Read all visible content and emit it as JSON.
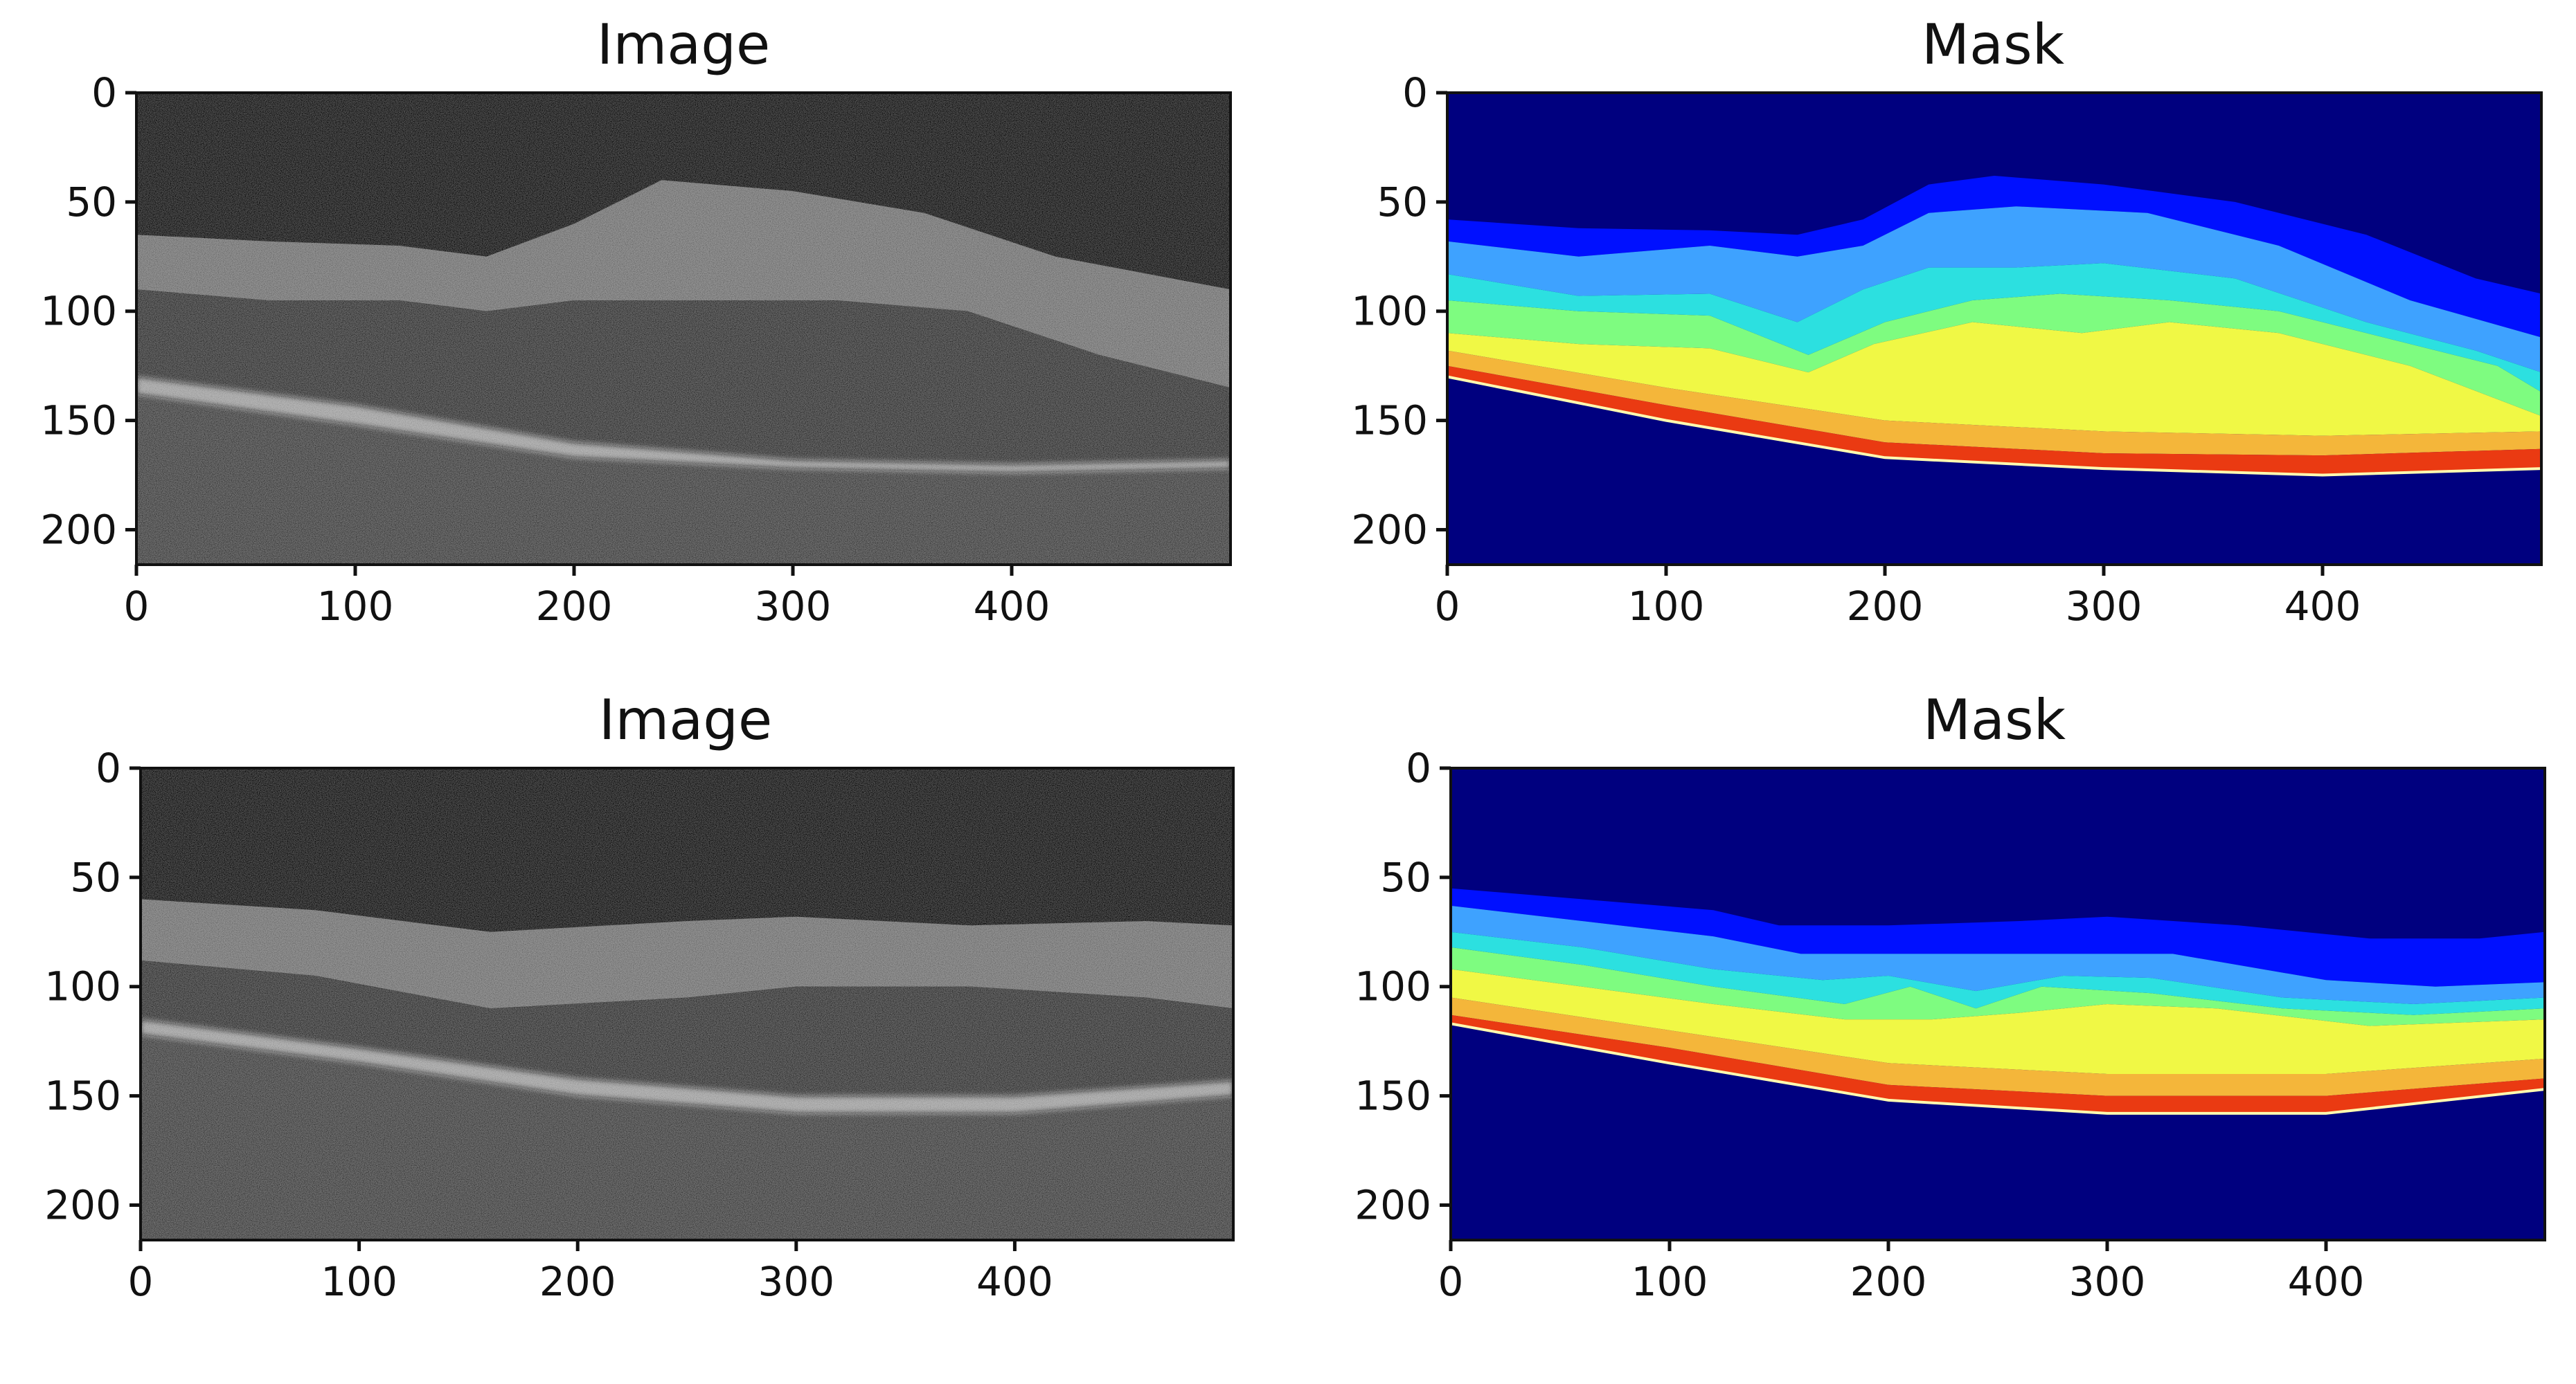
{
  "figure": {
    "panels": [
      {
        "id": "top-left",
        "title": "Image",
        "kind": "oct-scan",
        "x_ticks": [
          "0",
          "100",
          "200",
          "300",
          "400"
        ],
        "y_ticks": [
          "0",
          "50",
          "100",
          "150",
          "200"
        ],
        "boundaries": [
          [
            [
              0,
              65
            ],
            [
              60,
              68
            ],
            [
              120,
              70
            ],
            [
              160,
              75
            ],
            [
              200,
              60
            ],
            [
              240,
              40
            ],
            [
              300,
              45
            ],
            [
              360,
              55
            ],
            [
              420,
              75
            ],
            [
              500,
              90
            ]
          ],
          [
            [
              0,
              90
            ],
            [
              60,
              95
            ],
            [
              120,
              95
            ],
            [
              160,
              100
            ],
            [
              200,
              95
            ],
            [
              260,
              95
            ],
            [
              320,
              95
            ],
            [
              380,
              100
            ],
            [
              440,
              120
            ],
            [
              500,
              135
            ]
          ],
          [
            [
              0,
              130
            ],
            [
              100,
              143
            ],
            [
              200,
              160
            ],
            [
              300,
              168
            ],
            [
              400,
              170
            ],
            [
              500,
              168
            ]
          ],
          [
            [
              0,
              138
            ],
            [
              100,
              152
            ],
            [
              200,
              167
            ],
            [
              300,
              172
            ],
            [
              400,
              174
            ],
            [
              500,
              172
            ]
          ]
        ]
      },
      {
        "id": "top-right",
        "title": "Mask",
        "kind": "segmentation",
        "x_ticks": [
          "0",
          "100",
          "200",
          "300",
          "400"
        ],
        "y_ticks": [
          "0",
          "50",
          "100",
          "150",
          "200"
        ],
        "boundaries": [
          [
            [
              0,
              58
            ],
            [
              60,
              62
            ],
            [
              120,
              63
            ],
            [
              160,
              65
            ],
            [
              190,
              58
            ],
            [
              220,
              42
            ],
            [
              250,
              38
            ],
            [
              300,
              42
            ],
            [
              360,
              50
            ],
            [
              420,
              65
            ],
            [
              470,
              85
            ],
            [
              500,
              92
            ]
          ],
          [
            [
              0,
              68
            ],
            [
              60,
              75
            ],
            [
              120,
              70
            ],
            [
              160,
              75
            ],
            [
              190,
              70
            ],
            [
              220,
              55
            ],
            [
              260,
              52
            ],
            [
              320,
              55
            ],
            [
              380,
              70
            ],
            [
              440,
              95
            ],
            [
              500,
              112
            ]
          ],
          [
            [
              0,
              83
            ],
            [
              60,
              93
            ],
            [
              120,
              92
            ],
            [
              160,
              105
            ],
            [
              190,
              90
            ],
            [
              220,
              80
            ],
            [
              260,
              80
            ],
            [
              300,
              78
            ],
            [
              360,
              85
            ],
            [
              420,
              105
            ],
            [
              470,
              118
            ],
            [
              500,
              128
            ]
          ],
          [
            [
              0,
              95
            ],
            [
              60,
              100
            ],
            [
              120,
              102
            ],
            [
              165,
              120
            ],
            [
              200,
              105
            ],
            [
              240,
              95
            ],
            [
              280,
              92
            ],
            [
              330,
              95
            ],
            [
              380,
              100
            ],
            [
              440,
              115
            ],
            [
              480,
              125
            ],
            [
              500,
              137
            ]
          ],
          [
            [
              0,
              110
            ],
            [
              60,
              115
            ],
            [
              120,
              117
            ],
            [
              165,
              128
            ],
            [
              195,
              115
            ],
            [
              240,
              105
            ],
            [
              290,
              110
            ],
            [
              330,
              105
            ],
            [
              380,
              110
            ],
            [
              440,
              125
            ],
            [
              500,
              148
            ]
          ],
          [
            [
              0,
              118
            ],
            [
              100,
              135
            ],
            [
              200,
              150
            ],
            [
              300,
              155
            ],
            [
              400,
              157
            ],
            [
              500,
              155
            ]
          ],
          [
            [
              0,
              125
            ],
            [
              100,
              143
            ],
            [
              200,
              160
            ],
            [
              300,
              165
            ],
            [
              400,
              166
            ],
            [
              500,
              163
            ]
          ],
          [
            [
              0,
              130
            ],
            [
              100,
              150
            ],
            [
              200,
              167
            ],
            [
              300,
              172
            ],
            [
              400,
              175
            ],
            [
              500,
              172
            ]
          ]
        ],
        "colors": [
          "#00007f",
          "#0010ff",
          "#3ea2ff",
          "#2ce0e0",
          "#7efc80",
          "#f0f845",
          "#f4b63a",
          "#ea3a12",
          "#990000",
          "#00007f"
        ]
      },
      {
        "id": "bottom-left",
        "title": "Image",
        "kind": "oct-scan",
        "x_ticks": [
          "0",
          "100",
          "200",
          "300",
          "400"
        ],
        "y_ticks": [
          "0",
          "50",
          "100",
          "150",
          "200"
        ],
        "boundaries": [
          [
            [
              0,
              60
            ],
            [
              80,
              65
            ],
            [
              160,
              75
            ],
            [
              250,
              70
            ],
            [
              300,
              68
            ],
            [
              380,
              72
            ],
            [
              460,
              70
            ],
            [
              500,
              72
            ]
          ],
          [
            [
              0,
              88
            ],
            [
              80,
              95
            ],
            [
              160,
              110
            ],
            [
              250,
              105
            ],
            [
              300,
              100
            ],
            [
              380,
              100
            ],
            [
              460,
              105
            ],
            [
              500,
              110
            ]
          ],
          [
            [
              0,
              115
            ],
            [
              100,
              128
            ],
            [
              200,
              142
            ],
            [
              300,
              150
            ],
            [
              400,
              150
            ],
            [
              500,
              143
            ]
          ],
          [
            [
              0,
              122
            ],
            [
              100,
              135
            ],
            [
              200,
              150
            ],
            [
              300,
              158
            ],
            [
              400,
              158
            ],
            [
              500,
              150
            ]
          ]
        ]
      },
      {
        "id": "bottom-right",
        "title": "Mask",
        "kind": "segmentation",
        "x_ticks": [
          "0",
          "100",
          "200",
          "300",
          "400"
        ],
        "y_ticks": [
          "0",
          "50",
          "100",
          "150",
          "200"
        ],
        "boundaries": [
          [
            [
              0,
              55
            ],
            [
              60,
              60
            ],
            [
              120,
              65
            ],
            [
              150,
              72
            ],
            [
              200,
              72
            ],
            [
              260,
              70
            ],
            [
              300,
              68
            ],
            [
              360,
              72
            ],
            [
              420,
              78
            ],
            [
              470,
              78
            ],
            [
              500,
              75
            ]
          ],
          [
            [
              0,
              63
            ],
            [
              60,
              70
            ],
            [
              120,
              77
            ],
            [
              160,
              85
            ],
            [
              220,
              85
            ],
            [
              280,
              85
            ],
            [
              330,
              85
            ],
            [
              400,
              97
            ],
            [
              450,
              100
            ],
            [
              500,
              98
            ]
          ],
          [
            [
              0,
              75
            ],
            [
              60,
              82
            ],
            [
              120,
              92
            ],
            [
              170,
              97
            ],
            [
              200,
              95
            ],
            [
              240,
              102
            ],
            [
              280,
              95
            ],
            [
              320,
              96
            ],
            [
              380,
              105
            ],
            [
              440,
              108
            ],
            [
              500,
              105
            ]
          ],
          [
            [
              0,
              82
            ],
            [
              60,
              90
            ],
            [
              120,
              100
            ],
            [
              180,
              108
            ],
            [
              210,
              100
            ],
            [
              240,
              110
            ],
            [
              270,
              100
            ],
            [
              320,
              103
            ],
            [
              380,
              110
            ],
            [
              440,
              113
            ],
            [
              500,
              110
            ]
          ],
          [
            [
              0,
              92
            ],
            [
              60,
              100
            ],
            [
              120,
              108
            ],
            [
              180,
              115
            ],
            [
              220,
              115
            ],
            [
              260,
              112
            ],
            [
              300,
              108
            ],
            [
              350,
              110
            ],
            [
              420,
              118
            ],
            [
              500,
              115
            ]
          ],
          [
            [
              0,
              105
            ],
            [
              100,
              120
            ],
            [
              200,
              135
            ],
            [
              300,
              140
            ],
            [
              400,
              140
            ],
            [
              500,
              133
            ]
          ],
          [
            [
              0,
              113
            ],
            [
              100,
              128
            ],
            [
              200,
              145
            ],
            [
              300,
              150
            ],
            [
              400,
              150
            ],
            [
              500,
              142
            ]
          ],
          [
            [
              0,
              117
            ],
            [
              100,
              135
            ],
            [
              200,
              152
            ],
            [
              300,
              158
            ],
            [
              400,
              158
            ],
            [
              500,
              147
            ]
          ]
        ],
        "colors": [
          "#00007f",
          "#0010ff",
          "#3ea2ff",
          "#2ce0e0",
          "#7efc80",
          "#f0f845",
          "#f4b63a",
          "#ea3a12",
          "#990000",
          "#00007f"
        ]
      }
    ]
  }
}
